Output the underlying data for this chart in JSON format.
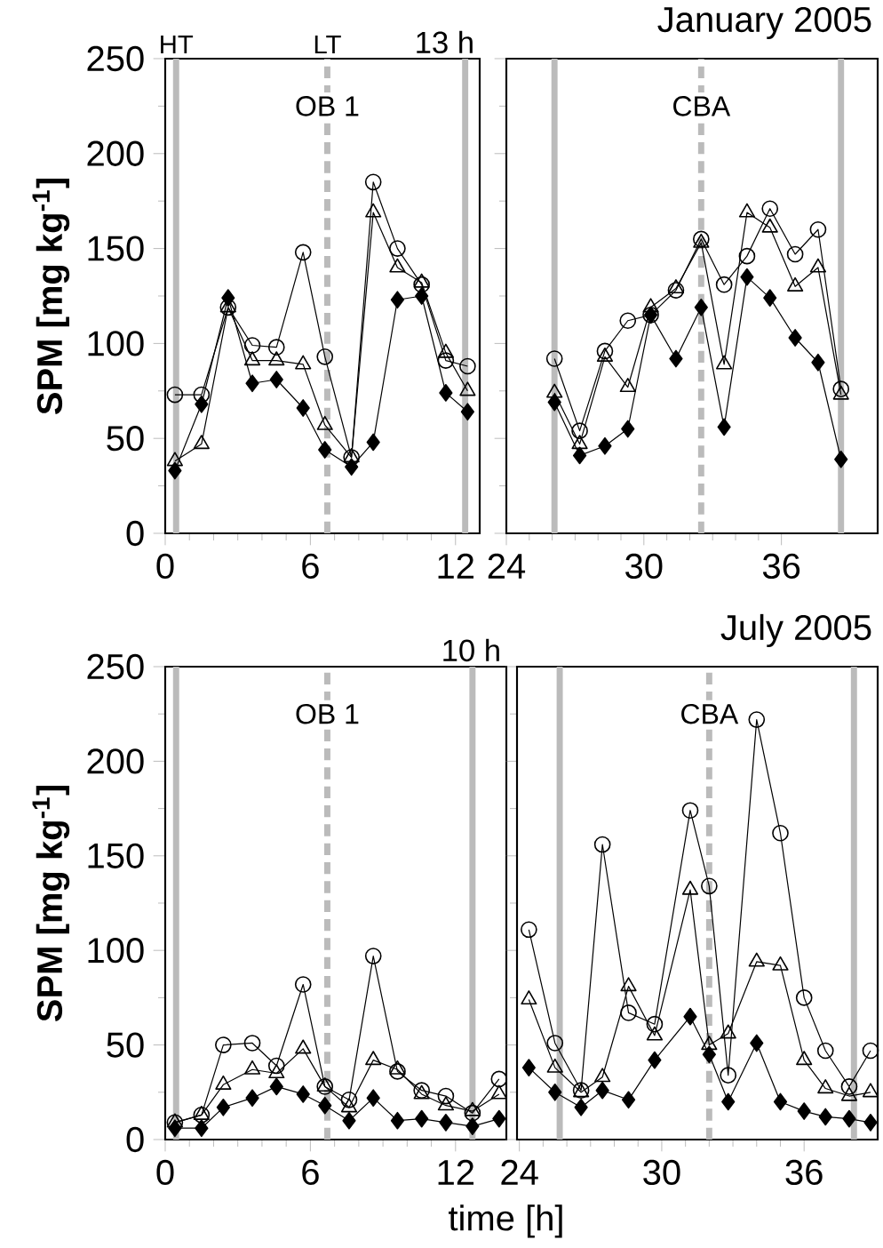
{
  "chart_data": [
    {
      "type": "line",
      "ylabel": "SPM [mg kg$^{-1}$]",
      "annotations": [
        {
          "text": "OB 1",
          "x": 6.7,
          "y": 225
        },
        "13 h"
      ],
      "x": [
        0.4,
        1.5,
        2.6,
        3.6,
        4.6,
        5.7,
        6.6,
        7.7,
        8.6,
        9.6,
        10.6,
        11.6,
        12.5
      ],
      "series": [
        {
          "color": "#000000",
          "marker": "circle",
          "values": [
            73,
            73,
            119,
            99,
            98,
            148,
            93,
            40,
            185,
            150,
            131,
            91,
            88
          ]
        },
        {
          "color": "#000000",
          "marker": "triangle",
          "values": [
            38,
            47,
            119,
            91,
            91,
            89,
            57,
            40,
            169,
            140,
            132,
            95,
            75
          ]
        },
        {
          "color": "#000000",
          "marker": "diamond",
          "values": [
            33,
            68,
            124,
            79,
            81,
            66,
            44,
            35,
            48,
            123,
            125,
            74,
            64
          ]
        }
      ],
      "xlim": [
        0,
        13
      ],
      "xticks": [
        0,
        6,
        12
      ],
      "ylim": [
        0,
        250
      ],
      "yticks": [
        0,
        50,
        100,
        150,
        200,
        250
      ],
      "ref_lines": [
        {
          "axis": "x",
          "value": 0.45,
          "label": "HT",
          "color": "#bbbbbb"
        },
        {
          "axis": "x",
          "value": 6.7,
          "label": "LT",
          "color": "#bbbbbb",
          "line_style": "dashed"
        },
        {
          "axis": "x",
          "value": 12.4,
          "color": "#bbbbbb"
        }
      ]
    },
    {
      "type": "line",
      "title": "January 2005",
      "annotations": [
        {
          "text": "CBA",
          "x": 32.5,
          "y": 225
        }
      ],
      "x": [
        26.1,
        27.2,
        28.3,
        29.3,
        30.3,
        31.4,
        32.5,
        33.5,
        34.5,
        35.5,
        36.6,
        37.6,
        38.6
      ],
      "series": [
        {
          "color": "#000000",
          "marker": "circle",
          "values": [
            92,
            54,
            96,
            112,
            115,
            128,
            155,
            131,
            146,
            171,
            147,
            160,
            76
          ]
        },
        {
          "color": "#000000",
          "marker": "triangle",
          "values": [
            74,
            47,
            93,
            77,
            119,
            129,
            153,
            89,
            169,
            161,
            130,
            140,
            73
          ]
        },
        {
          "color": "#000000",
          "marker": "diamond",
          "values": [
            69,
            41,
            46,
            55,
            115,
            92,
            119,
            56,
            135,
            124,
            103,
            90,
            39
          ]
        }
      ],
      "xlim": [
        24,
        40.2
      ],
      "xticks": [
        24,
        30,
        36
      ],
      "ylim": [
        0,
        250
      ],
      "yticks": [
        0,
        50,
        100,
        150,
        200,
        250
      ],
      "tick_labels": "x",
      "ref_lines": [
        {
          "axis": "x",
          "value": 26.1,
          "color": "#bbbbbb"
        },
        {
          "axis": "x",
          "value": 32.5,
          "color": "#bbbbbb",
          "line_style": "dashed"
        },
        {
          "axis": "x",
          "value": 38.6,
          "color": "#bbbbbb"
        }
      ]
    },
    {
      "type": "line",
      "ylabel": "SPM [mg kg$^{-1}$]",
      "xlabel": "time [h]",
      "annotations": [
        {
          "text": "OB 1",
          "x": 6.7,
          "y": 225
        },
        "10 h"
      ],
      "x": [
        0.4,
        1.5,
        2.4,
        3.6,
        4.6,
        5.7,
        6.6,
        7.6,
        8.6,
        9.6,
        10.6,
        11.6,
        12.7,
        13.8
      ],
      "series": [
        {
          "color": "#000000",
          "marker": "circle",
          "values": [
            9,
            13,
            50,
            51,
            39,
            82,
            28,
            21,
            97,
            36,
            26,
            23,
            14,
            32
          ]
        },
        {
          "color": "#000000",
          "marker": "triangle",
          "values": [
            9,
            13,
            29,
            37,
            35,
            48,
            28,
            17,
            42,
            37,
            24,
            18,
            15,
            24
          ]
        },
        {
          "color": "#000000",
          "marker": "diamond",
          "values": [
            6,
            6,
            17,
            22,
            28,
            24,
            18,
            10,
            22,
            10,
            11,
            9,
            7,
            11
          ]
        }
      ],
      "xlim": [
        0,
        14.1
      ],
      "xticks": [
        0,
        6,
        12
      ],
      "ylim": [
        0,
        250
      ],
      "yticks": [
        0,
        50,
        100,
        150,
        200,
        250
      ],
      "ref_lines": [
        {
          "axis": "x",
          "value": 0.45,
          "color": "#bbbbbb"
        },
        {
          "axis": "x",
          "value": 6.7,
          "color": "#bbbbbb",
          "line_style": "dashed"
        },
        {
          "axis": "x",
          "value": 12.7,
          "color": "#bbbbbb"
        }
      ]
    },
    {
      "type": "line",
      "title": "July 2005",
      "annotations": [
        {
          "text": "CBA",
          "x": 32.0,
          "y": 225
        }
      ],
      "x": [
        24.4,
        25.5,
        26.6,
        27.5,
        28.6,
        29.7,
        31.2,
        32.0,
        32.8,
        34.0,
        35.0,
        36.0,
        36.9,
        37.9,
        38.8
      ],
      "series": [
        {
          "color": "#000000",
          "marker": "circle",
          "values": [
            111,
            51,
            26,
            156,
            67,
            61,
            174,
            134,
            34,
            222,
            162,
            75,
            47,
            28,
            47
          ]
        },
        {
          "color": "#000000",
          "marker": "triangle",
          "values": [
            74,
            38,
            25,
            33,
            81,
            55,
            132,
            50,
            56,
            94,
            92,
            42,
            27,
            23,
            25
          ]
        },
        {
          "color": "#000000",
          "marker": "diamond",
          "values": [
            38,
            25,
            17,
            26,
            21,
            42,
            65,
            45,
            20,
            51,
            20,
            15,
            12,
            11,
            9
          ]
        }
      ],
      "xlim": [
        23.9,
        39.1
      ],
      "xticks": [
        24,
        30,
        36
      ],
      "ylim": [
        0,
        250
      ],
      "yticks": [
        0,
        50,
        100,
        150,
        200,
        250
      ],
      "tick_labels": "x",
      "ref_lines": [
        {
          "axis": "x",
          "value": 25.7,
          "color": "#bbbbbb"
        },
        {
          "axis": "x",
          "value": 32.0,
          "color": "#bbbbbb",
          "line_style": "dashed"
        },
        {
          "axis": "x",
          "value": 38.1,
          "color": "#bbbbbb"
        }
      ]
    }
  ]
}
